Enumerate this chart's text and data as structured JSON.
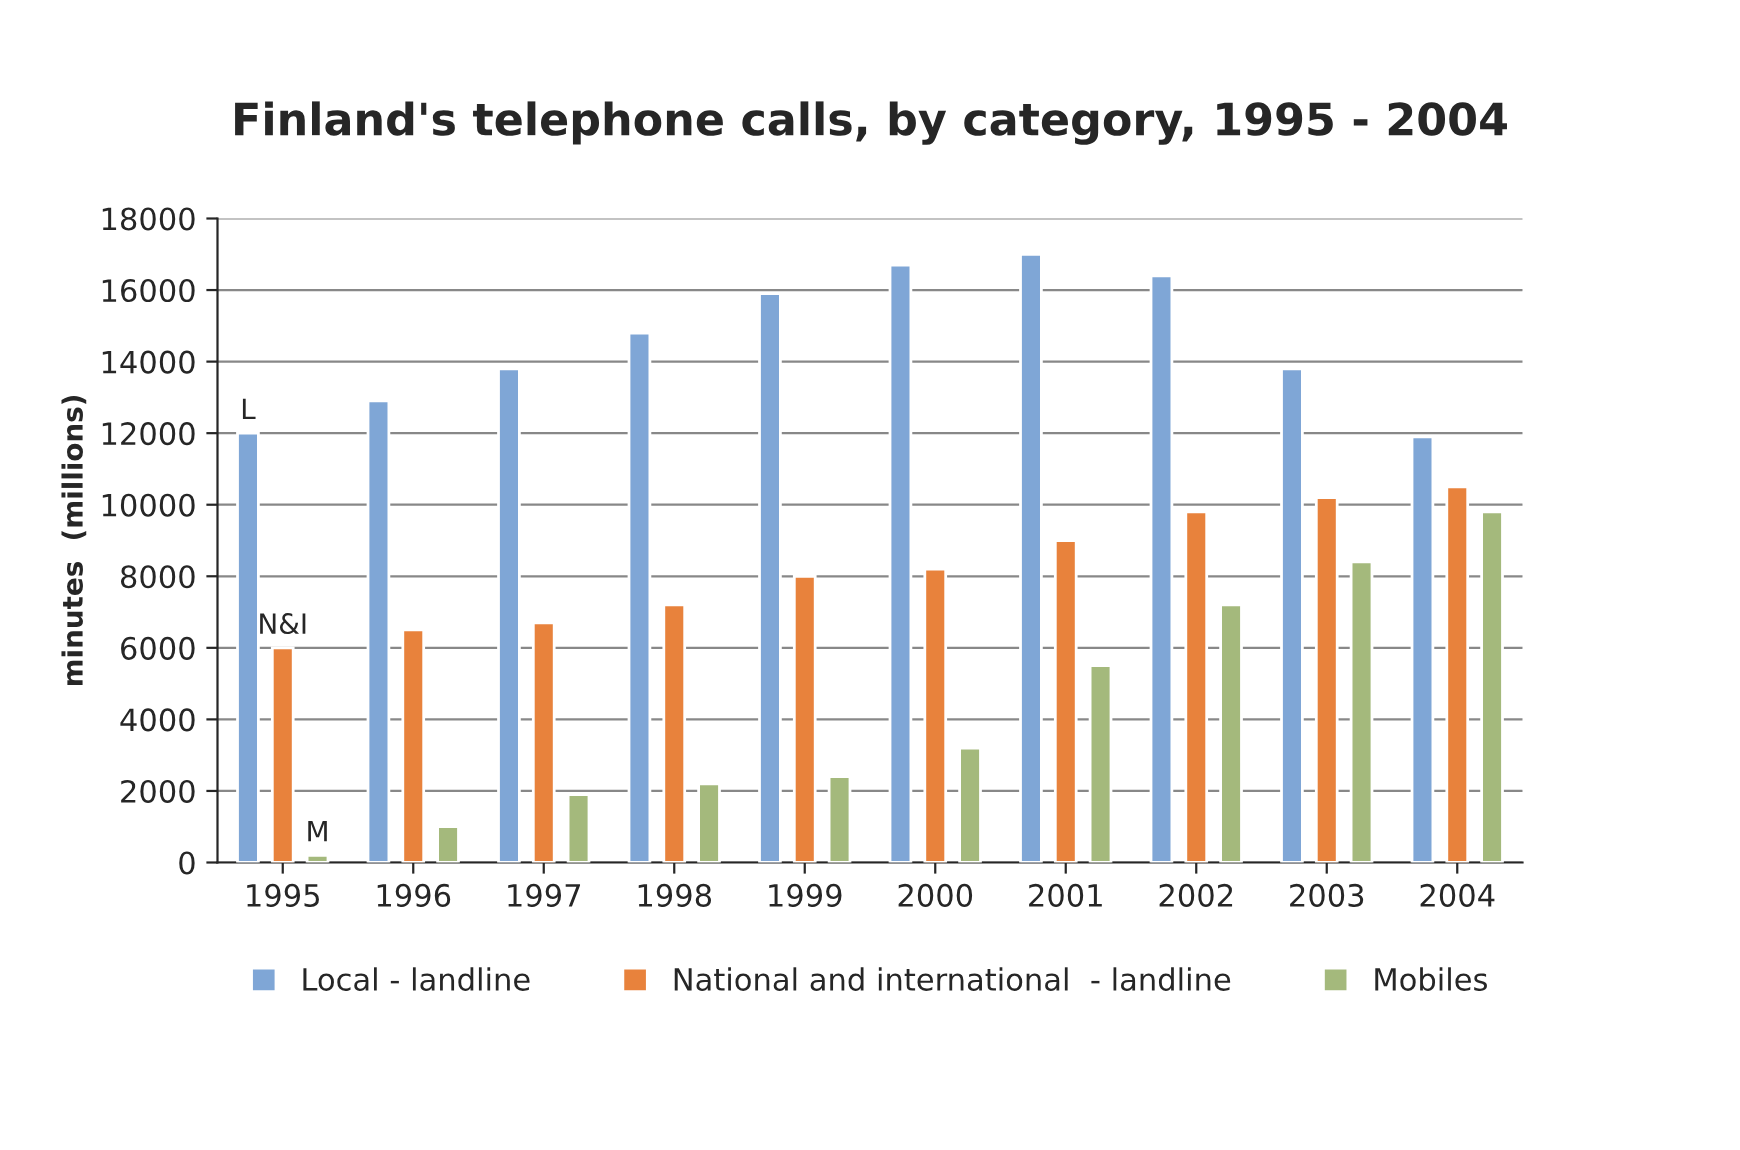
{
  "chart_data": {
    "type": "bar",
    "title": "Finland's telephone calls, by category, 1995 - 2004",
    "ylabel": "minutes  (millions)",
    "categories": [
      "1995",
      "1996",
      "1997",
      "1998",
      "1999",
      "2000",
      "2001",
      "2002",
      "2003",
      "2004"
    ],
    "series": [
      {
        "name": "Local - landline",
        "color": "#7fa6d6",
        "values": [
          12000,
          12900,
          13800,
          14800,
          15900,
          16700,
          17000,
          16400,
          13800,
          11900
        ]
      },
      {
        "name": "National and international  - landline",
        "color": "#e8823c",
        "values": [
          6000,
          6500,
          6700,
          7200,
          8000,
          8200,
          9000,
          9800,
          10200,
          10500
        ]
      },
      {
        "name": "Mobiles",
        "color": "#a4b97c",
        "values": [
          200,
          1000,
          1900,
          2200,
          2400,
          3200,
          5500,
          7200,
          8400,
          9800
        ]
      }
    ],
    "ylim": [
      0,
      18000
    ],
    "yticks": [
      0,
      2000,
      4000,
      6000,
      8000,
      10000,
      12000,
      14000,
      16000,
      18000
    ],
    "grid": "y",
    "legend": "bottom",
    "annotations": [
      "L",
      "N&I",
      "M"
    ]
  }
}
